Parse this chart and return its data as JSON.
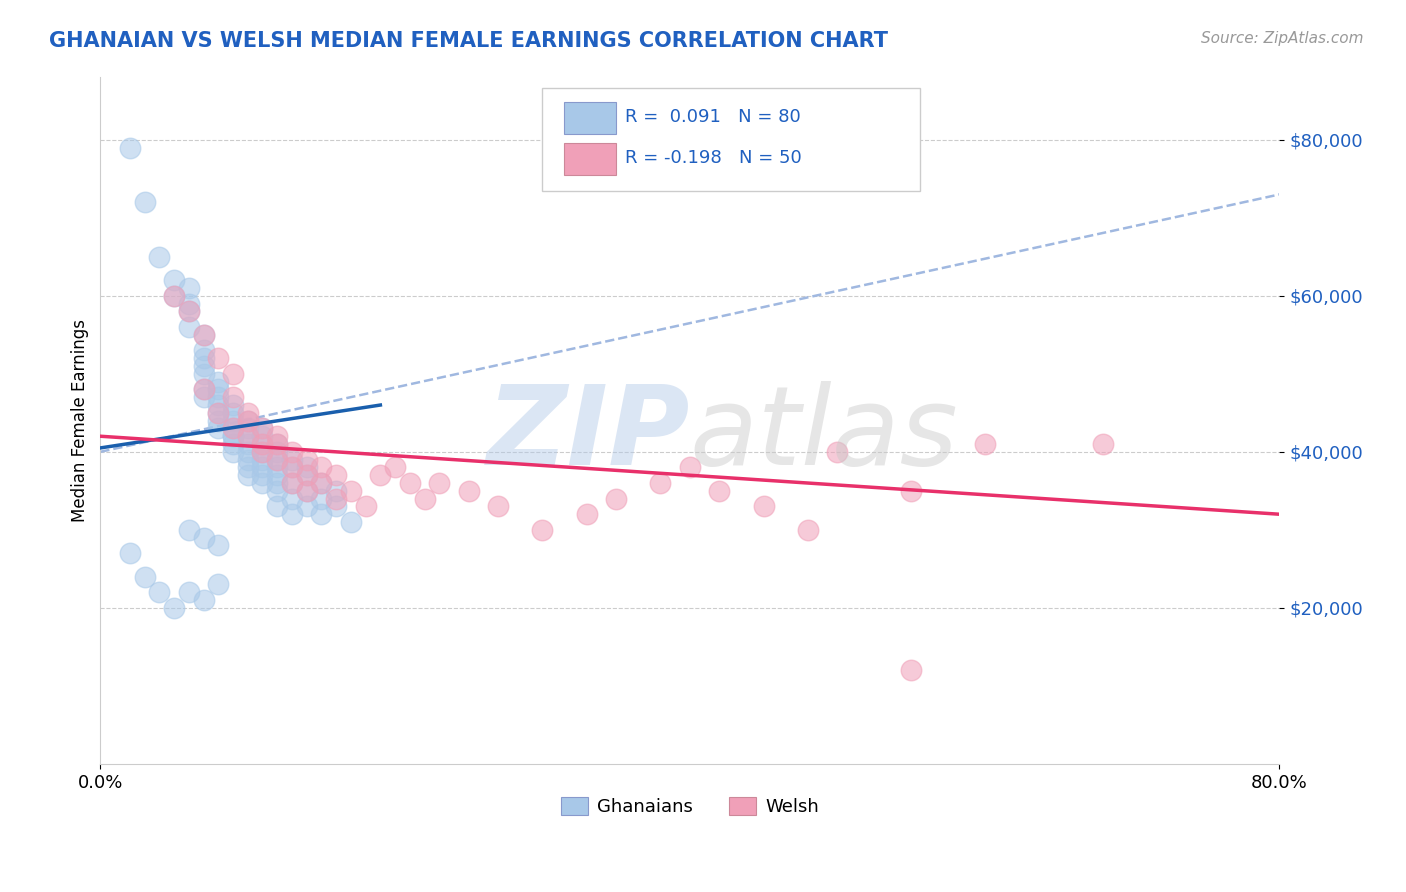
{
  "title": "GHANAIAN VS WELSH MEDIAN FEMALE EARNINGS CORRELATION CHART",
  "source_text": "Source: ZipAtlas.com",
  "ylabel": "Median Female Earnings",
  "xlim": [
    0.0,
    0.8
  ],
  "ylim": [
    0,
    88000
  ],
  "yticks": [
    20000,
    40000,
    60000,
    80000
  ],
  "ytick_labels": [
    "$20,000",
    "$40,000",
    "$60,000",
    "$80,000"
  ],
  "xticks": [
    0.0,
    0.8
  ],
  "xtick_labels": [
    "0.0%",
    "80.0%"
  ],
  "blue_color": "#a8c8e8",
  "pink_color": "#f0a0b8",
  "blue_line_color": "#1a5fad",
  "pink_line_color": "#e8306a",
  "dash_line_color": "#a0b8e0",
  "title_color": "#2060c0",
  "source_color": "#999999",
  "watermark_zip_color": "#b0c8e8",
  "watermark_atlas_color": "#c8c8c8",
  "blue_scatter_x": [
    0.02,
    0.03,
    0.04,
    0.05,
    0.05,
    0.06,
    0.06,
    0.06,
    0.06,
    0.07,
    0.07,
    0.07,
    0.07,
    0.07,
    0.07,
    0.07,
    0.08,
    0.08,
    0.08,
    0.08,
    0.08,
    0.08,
    0.08,
    0.09,
    0.09,
    0.09,
    0.09,
    0.09,
    0.09,
    0.09,
    0.09,
    0.1,
    0.1,
    0.1,
    0.1,
    0.1,
    0.1,
    0.1,
    0.1,
    0.11,
    0.11,
    0.11,
    0.11,
    0.11,
    0.11,
    0.11,
    0.11,
    0.12,
    0.12,
    0.12,
    0.12,
    0.12,
    0.12,
    0.12,
    0.12,
    0.13,
    0.13,
    0.13,
    0.13,
    0.13,
    0.14,
    0.14,
    0.14,
    0.14,
    0.15,
    0.15,
    0.15,
    0.16,
    0.16,
    0.17,
    0.02,
    0.03,
    0.04,
    0.05,
    0.06,
    0.07,
    0.08,
    0.06,
    0.07,
    0.08
  ],
  "blue_scatter_y": [
    79000,
    72000,
    65000,
    60000,
    62000,
    58000,
    61000,
    56000,
    59000,
    55000,
    50000,
    53000,
    48000,
    51000,
    47000,
    52000,
    48000,
    45000,
    46000,
    49000,
    44000,
    47000,
    43000,
    46000,
    44000,
    42000,
    40000,
    43000,
    41000,
    45000,
    42000,
    43000,
    41000,
    39000,
    42000,
    40000,
    38000,
    44000,
    37000,
    43000,
    41000,
    39000,
    37000,
    40000,
    38000,
    36000,
    42000,
    40000,
    38000,
    36000,
    39000,
    37000,
    35000,
    41000,
    33000,
    38000,
    36000,
    34000,
    39000,
    32000,
    37000,
    35000,
    33000,
    38000,
    36000,
    34000,
    32000,
    35000,
    33000,
    31000,
    27000,
    24000,
    22000,
    20000,
    22000,
    21000,
    23000,
    30000,
    29000,
    28000
  ],
  "pink_scatter_x": [
    0.05,
    0.06,
    0.07,
    0.07,
    0.08,
    0.08,
    0.09,
    0.09,
    0.09,
    0.1,
    0.1,
    0.1,
    0.11,
    0.11,
    0.11,
    0.12,
    0.12,
    0.12,
    0.13,
    0.13,
    0.13,
    0.14,
    0.14,
    0.14,
    0.15,
    0.15,
    0.16,
    0.16,
    0.17,
    0.18,
    0.19,
    0.2,
    0.21,
    0.22,
    0.23,
    0.25,
    0.27,
    0.3,
    0.33,
    0.35,
    0.38,
    0.4,
    0.42,
    0.45,
    0.48,
    0.5,
    0.55,
    0.6,
    0.68,
    0.55
  ],
  "pink_scatter_y": [
    60000,
    58000,
    55000,
    48000,
    52000,
    45000,
    50000,
    43000,
    47000,
    45000,
    42000,
    44000,
    41000,
    43000,
    40000,
    42000,
    39000,
    41000,
    40000,
    38000,
    36000,
    39000,
    37000,
    35000,
    38000,
    36000,
    34000,
    37000,
    35000,
    33000,
    37000,
    38000,
    36000,
    34000,
    36000,
    35000,
    33000,
    30000,
    32000,
    34000,
    36000,
    38000,
    35000,
    33000,
    30000,
    40000,
    35000,
    41000,
    41000,
    12000
  ],
  "blue_trend_x": [
    0.0,
    0.19
  ],
  "blue_trend_y": [
    40500,
    46000
  ],
  "pink_trend_x": [
    0.0,
    0.8
  ],
  "pink_trend_y": [
    42000,
    32000
  ],
  "dash_trend_x": [
    0.0,
    0.8
  ],
  "dash_trend_y": [
    40000,
    73000
  ]
}
